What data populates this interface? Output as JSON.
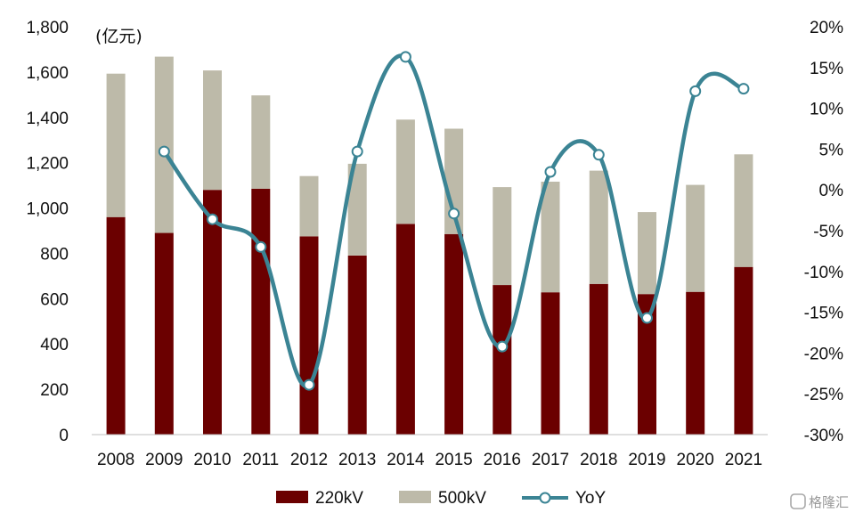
{
  "chart_data": {
    "type": "bar",
    "stacked": true,
    "categories": [
      "2008",
      "2009",
      "2010",
      "2011",
      "2012",
      "2013",
      "2014",
      "2015",
      "2016",
      "2017",
      "2018",
      "2019",
      "2020",
      "2021"
    ],
    "series": [
      {
        "name": "220kV",
        "type": "bar",
        "axis": "left",
        "color": "#6b0000",
        "values": [
          960,
          890,
          1080,
          1085,
          875,
          790,
          930,
          885,
          660,
          628,
          665,
          620,
          630,
          740
        ]
      },
      {
        "name": "500kV",
        "type": "bar",
        "axis": "left",
        "color": "#bdbaa9",
        "values": [
          633,
          778,
          527,
          412,
          266,
          405,
          460,
          465,
          432,
          488,
          500,
          362,
          472,
          497
        ]
      },
      {
        "name": "YoY",
        "type": "line",
        "axis": "right",
        "color": "#3b8494",
        "values": [
          null,
          4.7,
          -3.6,
          -7.0,
          -23.9,
          4.7,
          16.3,
          -2.9,
          -19.2,
          2.2,
          4.3,
          -15.7,
          12.1,
          12.4
        ]
      }
    ],
    "left_axis": {
      "unit_label": "(亿元)",
      "min": 0,
      "max": 1800,
      "step": 200,
      "ticks": [
        "0",
        "200",
        "400",
        "600",
        "800",
        "1,000",
        "1,200",
        "1,400",
        "1,600",
        "1,800"
      ]
    },
    "right_axis": {
      "min": -30,
      "max": 20,
      "step": 5,
      "ticks": [
        "-30%",
        "-25%",
        "-20%",
        "-15%",
        "-10%",
        "-5%",
        "0%",
        "5%",
        "10%",
        "15%",
        "20%"
      ]
    },
    "legend": {
      "position": "bottom",
      "items": [
        {
          "label": "220kV",
          "marker": "rect",
          "color": "#6b0000"
        },
        {
          "label": "500kV",
          "marker": "rect",
          "color": "#bdbaa9"
        },
        {
          "label": "YoY",
          "marker": "line-circle",
          "color": "#3b8494"
        }
      ]
    },
    "grid": false,
    "watermark": "格隆汇"
  }
}
